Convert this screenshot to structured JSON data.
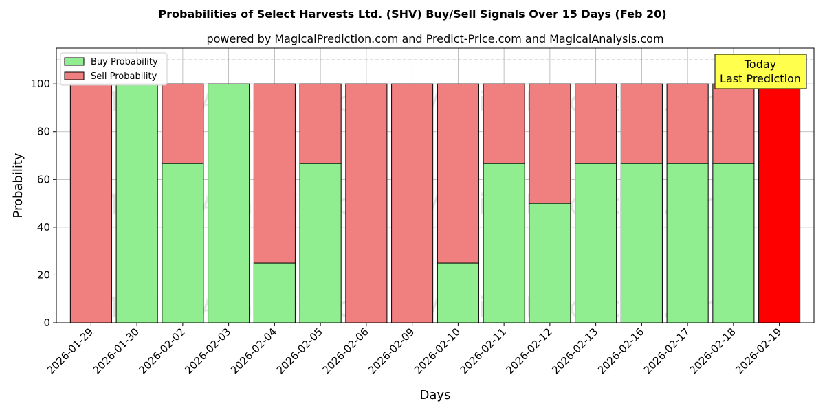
{
  "chart_data": {
    "type": "bar",
    "stacked": true,
    "title": "Probabilities of Select Harvests Ltd. (SHV) Buy/Sell Signals Over 15 Days (Feb 20)",
    "subtitle": "powered by MagicalPrediction.com and Predict-Price.com and MagicalAnalysis.com",
    "xlabel": "Days",
    "ylabel": "Probability",
    "ylim": [
      0,
      115
    ],
    "yticks": [
      0,
      20,
      40,
      60,
      80,
      100
    ],
    "grid": true,
    "legend_position": "top-left",
    "categories": [
      "2026-01-29",
      "2026-01-30",
      "2026-02-02",
      "2026-02-03",
      "2026-02-04",
      "2026-02-05",
      "2026-02-06",
      "2026-02-09",
      "2026-02-10",
      "2026-02-11",
      "2026-02-12",
      "2026-02-13",
      "2026-02-16",
      "2026-02-17",
      "2026-02-18",
      "2026-02-19"
    ],
    "series": [
      {
        "name": "Buy Probability",
        "color": "#90EE90",
        "values": [
          0,
          100,
          66.67,
          100,
          25,
          66.67,
          0,
          0,
          25,
          66.67,
          50,
          66.67,
          66.67,
          66.67,
          66.67,
          0
        ]
      },
      {
        "name": "Sell Probability",
        "color": "#F08080",
        "values": [
          100,
          0,
          33.33,
          0,
          75,
          33.33,
          100,
          100,
          75,
          33.33,
          50,
          33.33,
          33.33,
          33.33,
          33.33,
          100
        ]
      }
    ],
    "highlight": {
      "index": 15,
      "color": "#FF0000"
    },
    "reference_line": {
      "y": 110,
      "style": "dashed",
      "color": "#808080"
    },
    "annotation": {
      "lines": [
        "Today",
        "Last Prediction"
      ],
      "background": "#FFFF4D"
    },
    "watermark": [
      "MagicalAnalysis.com",
      "MagicalPrediction.com"
    ]
  }
}
